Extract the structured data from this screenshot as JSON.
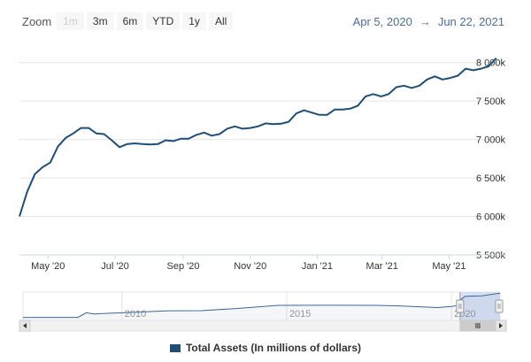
{
  "zoom": {
    "label": "Zoom",
    "buttons": [
      {
        "label": "1m",
        "disabled": true
      },
      {
        "label": "3m",
        "disabled": false
      },
      {
        "label": "6m",
        "disabled": false
      },
      {
        "label": "YTD",
        "disabled": false
      },
      {
        "label": "1y",
        "disabled": false
      },
      {
        "label": "All",
        "disabled": false
      }
    ]
  },
  "range": {
    "from": "Apr 5, 2020",
    "arrow": "→",
    "to": "Jun 22, 2021"
  },
  "colors": {
    "series": "#1f4e79",
    "grid": "#e6e6e6",
    "navigator_mask": "#c6d4ef"
  },
  "chart_data": {
    "type": "line",
    "x_start": "2020-04-05",
    "x_end": "2021-06-22",
    "x_interval_days": 7,
    "values": [
      6000,
      6320,
      6550,
      6640,
      6700,
      6910,
      7020,
      7080,
      7150,
      7150,
      7080,
      7070,
      6990,
      6900,
      6940,
      6950,
      6940,
      6935,
      6940,
      6990,
      6980,
      7010,
      7010,
      7060,
      7090,
      7050,
      7070,
      7140,
      7170,
      7140,
      7150,
      7170,
      7210,
      7200,
      7205,
      7230,
      7340,
      7380,
      7350,
      7320,
      7320,
      7390,
      7390,
      7400,
      7440,
      7560,
      7590,
      7560,
      7590,
      7680,
      7700,
      7670,
      7700,
      7780,
      7820,
      7780,
      7800,
      7830,
      7920,
      7900,
      7920,
      7950,
      8060
    ],
    "y_ticks": [
      "5 500k",
      "6 000k",
      "6 500k",
      "7 000k",
      "7 500k",
      "8 000k"
    ],
    "y_tick_values": [
      5500,
      6000,
      6500,
      7000,
      7500,
      8000
    ],
    "ylim": [
      5500,
      8100
    ],
    "x_ticks": [
      {
        "label": "May '20",
        "date": "2020-05-01"
      },
      {
        "label": "Jul '20",
        "date": "2020-07-01"
      },
      {
        "label": "Sep '20",
        "date": "2020-09-01"
      },
      {
        "label": "Nov '20",
        "date": "2020-11-01"
      },
      {
        "label": "Jan '21",
        "date": "2021-01-01"
      },
      {
        "label": "Mar '21",
        "date": "2021-03-01"
      },
      {
        "label": "May '21",
        "date": "2021-05-01"
      }
    ],
    "legend": "Total Assets (In millions of dollars)",
    "grid": true,
    "navigator": {
      "x_start": "2007-01-01",
      "x_end": "2021-06-22",
      "labels": [
        {
          "label": "2010",
          "date": "2010-01-01"
        },
        {
          "label": "2015",
          "date": "2015-01-01"
        },
        {
          "label": "2020",
          "date": "2020-01-01"
        }
      ],
      "series": [
        {
          "date": "2007-01-01",
          "value": 880
        },
        {
          "date": "2008-09-01",
          "value": 900
        },
        {
          "date": "2008-12-01",
          "value": 2250
        },
        {
          "date": "2009-03-01",
          "value": 1900
        },
        {
          "date": "2009-06-01",
          "value": 2050
        },
        {
          "date": "2010-01-01",
          "value": 2250
        },
        {
          "date": "2011-06-01",
          "value": 2850
        },
        {
          "date": "2012-06-01",
          "value": 2900
        },
        {
          "date": "2013-06-01",
          "value": 3500
        },
        {
          "date": "2014-10-01",
          "value": 4450
        },
        {
          "date": "2016-01-01",
          "value": 4500
        },
        {
          "date": "2017-10-01",
          "value": 4450
        },
        {
          "date": "2018-06-01",
          "value": 4300
        },
        {
          "date": "2019-08-01",
          "value": 3800
        },
        {
          "date": "2020-01-01",
          "value": 4150
        },
        {
          "date": "2020-03-01",
          "value": 4400
        },
        {
          "date": "2020-04-05",
          "value": 6000
        },
        {
          "date": "2020-06-01",
          "value": 7150
        },
        {
          "date": "2020-12-01",
          "value": 7300
        },
        {
          "date": "2021-06-22",
          "value": 8060
        }
      ]
    }
  }
}
